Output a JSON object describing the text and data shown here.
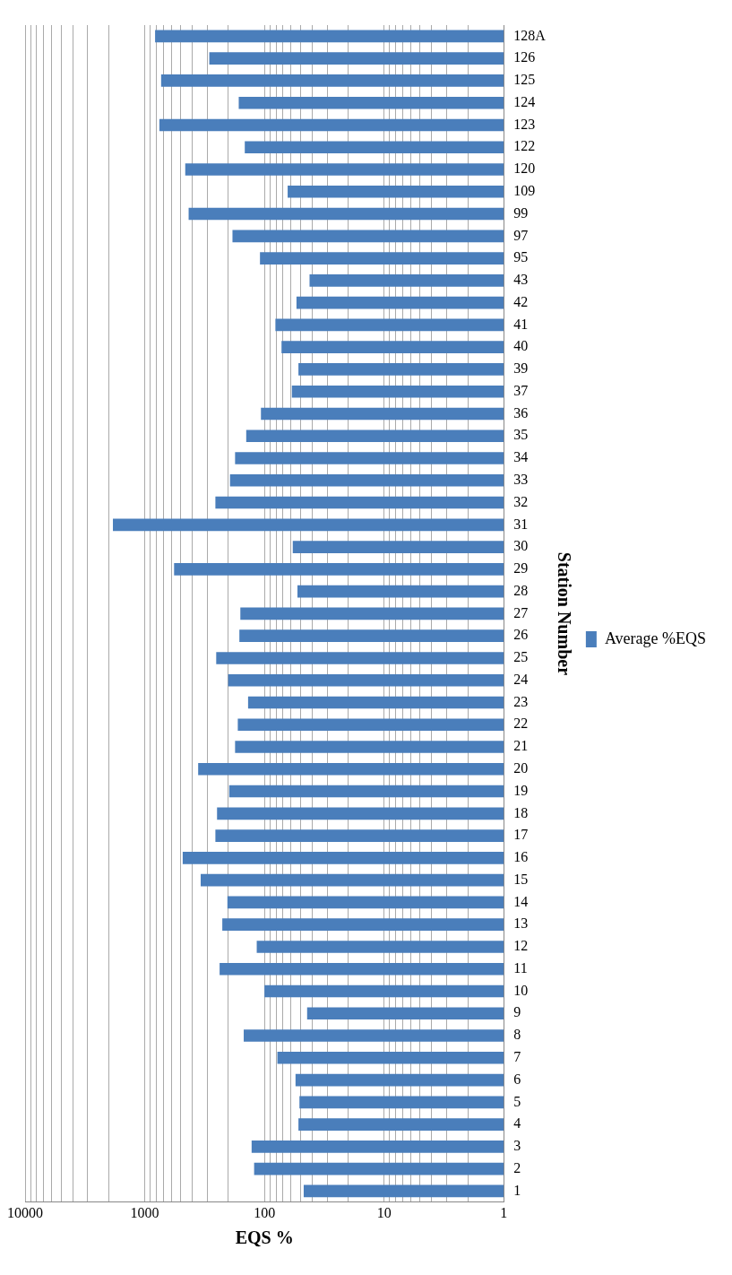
{
  "chart_data": {
    "type": "bar",
    "orientation": "horizontal",
    "log": "x",
    "xlabel": "EQS %",
    "ylabel": "Station Number",
    "categories": [
      "128A",
      "126",
      "125",
      "124",
      "123",
      "122",
      "120",
      "109",
      "99",
      "97",
      "95",
      "43",
      "42",
      "41",
      "40",
      "39",
      "37",
      "36",
      "35",
      "34",
      "33",
      "32",
      "31",
      "30",
      "29",
      "28",
      "27",
      "26",
      "25",
      "24",
      "23",
      "22",
      "21",
      "20",
      "19",
      "18",
      "17",
      "16",
      "15",
      "14",
      "13",
      "12",
      "11",
      "10",
      "9",
      "8",
      "7",
      "6",
      "5",
      "4",
      "3",
      "2",
      "1"
    ],
    "series": [
      {
        "name": "Average %EQS",
        "color": "#4a7ebb",
        "values": [
          820,
          289,
          730,
          164,
          755,
          146,
          459,
          64,
          430,
          185,
          109,
          42,
          54,
          81,
          72,
          52,
          59,
          107,
          142,
          176,
          194,
          257,
          1846,
          58,
          569,
          53,
          159,
          162,
          253,
          201,
          137,
          167,
          176,
          358,
          197,
          249,
          257,
          482,
          341,
          204,
          225,
          116,
          237,
          100,
          44,
          149,
          78,
          55,
          51,
          52,
          128,
          122,
          47
        ]
      }
    ],
    "xlim": [
      10000,
      1
    ],
    "xticks": [
      1,
      {
        "value": 2,
        "label": null
      },
      {
        "value": 3,
        "label": null
      },
      {
        "value": 4,
        "label": null
      },
      {
        "value": 5,
        "label": null
      },
      {
        "value": 6,
        "label": null
      },
      {
        "value": 7,
        "label": null
      },
      {
        "value": 8,
        "label": null
      },
      {
        "value": 9,
        "label": null
      },
      10,
      {
        "value": 20,
        "label": null
      },
      {
        "value": 30,
        "label": null
      },
      {
        "value": 40,
        "label": null
      },
      {
        "value": 50,
        "label": null
      },
      {
        "value": 60,
        "label": null
      },
      {
        "value": 70,
        "label": null
      },
      {
        "value": 80,
        "label": null
      },
      {
        "value": 90,
        "label": null
      },
      100,
      {
        "value": 200,
        "label": null
      },
      {
        "value": 300,
        "label": null
      },
      {
        "value": 400,
        "label": null
      },
      {
        "value": 500,
        "label": null
      },
      {
        "value": 600,
        "label": null
      },
      {
        "value": 700,
        "label": null
      },
      {
        "value": 800,
        "label": null
      },
      {
        "value": 900,
        "label": null
      },
      1000,
      {
        "value": 2000,
        "label": null
      },
      {
        "value": 3000,
        "label": null
      },
      {
        "value": 4000,
        "label": null
      },
      {
        "value": 5000,
        "label": null
      },
      {
        "value": 6000,
        "label": null
      },
      {
        "value": 7000,
        "label": null
      },
      {
        "value": 8000,
        "label": null
      },
      {
        "value": 9000,
        "label": null
      },
      10000
    ],
    "grid": "x",
    "legend": "right"
  }
}
